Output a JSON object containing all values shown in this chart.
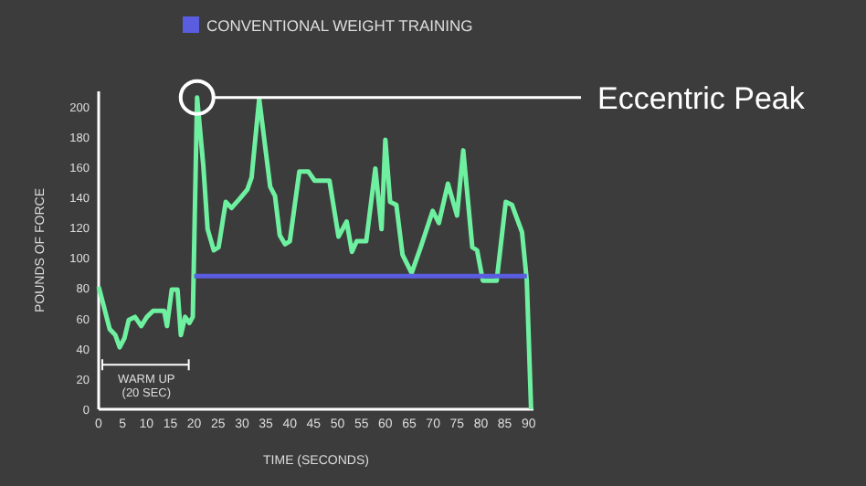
{
  "chart_data": {
    "type": "line",
    "xlabel": "TIME (SECONDS)",
    "ylabel": "POUNDS OF FORCE",
    "xlim": [
      0,
      91
    ],
    "ylim": [
      0,
      210
    ],
    "xticks": [
      0,
      5,
      10,
      15,
      20,
      25,
      30,
      35,
      40,
      45,
      50,
      55,
      60,
      65,
      70,
      75,
      80,
      85,
      90
    ],
    "yticks": [
      0,
      20,
      40,
      60,
      80,
      100,
      120,
      140,
      160,
      180,
      200
    ],
    "grid": false,
    "legend": "top",
    "marker": "none",
    "line_style": "solid",
    "series": [
      {
        "color": "#6ef0a0",
        "x": [
          0,
          1,
          2.3,
          3.5,
          4.4,
          5.4,
          6.3,
          7.6,
          8.9,
          10.1,
          11.4,
          12.7,
          13.7,
          14.3,
          15.3,
          16.5,
          17.2,
          18.1,
          19,
          19.7,
          20.6,
          21.9,
          22.8,
          24.1,
          25.1,
          26.6,
          27.8,
          29.5,
          31.1,
          32,
          33.6,
          35.9,
          36.9,
          37.9,
          39,
          40,
          42,
          43.9,
          45.2,
          48.3,
          50.2,
          51.9,
          53,
          54,
          56,
          57.9,
          59.2,
          60,
          61,
          62.3,
          63.6,
          65.5,
          67.4,
          69.9,
          71.2,
          73.1,
          75,
          76.3,
          78.2,
          79.2,
          80.4,
          83.3,
          85.2,
          86.5,
          88.6,
          89.6,
          90.5
        ],
        "values": [
          81,
          69,
          53,
          49,
          41,
          47,
          59,
          61,
          55,
          61,
          65,
          65,
          65,
          55,
          79,
          79,
          49,
          61,
          57,
          61,
          206,
          161,
          119,
          105,
          107,
          137,
          133,
          139,
          145,
          153,
          205,
          147,
          141,
          115,
          109,
          111,
          157,
          157,
          151,
          151,
          114,
          124,
          104,
          111,
          111,
          159,
          119,
          178,
          137,
          135,
          102,
          90,
          107,
          131,
          123,
          149,
          128,
          171,
          107,
          105,
          85,
          85,
          137,
          135,
          117,
          85,
          0
        ]
      },
      {
        "name": "CONVENTIONAL WEIGHT TRAINING",
        "color": "#5a5de0",
        "x": [
          20,
          89.6
        ],
        "values": [
          88,
          88
        ]
      }
    ],
    "ref_lines": [
      {
        "axis": "y",
        "value": 206,
        "label": "Eccentric Peak",
        "color": "#ffffff"
      }
    ],
    "annotations": [
      "WARM UP\n(20 SEC)"
    ]
  }
}
